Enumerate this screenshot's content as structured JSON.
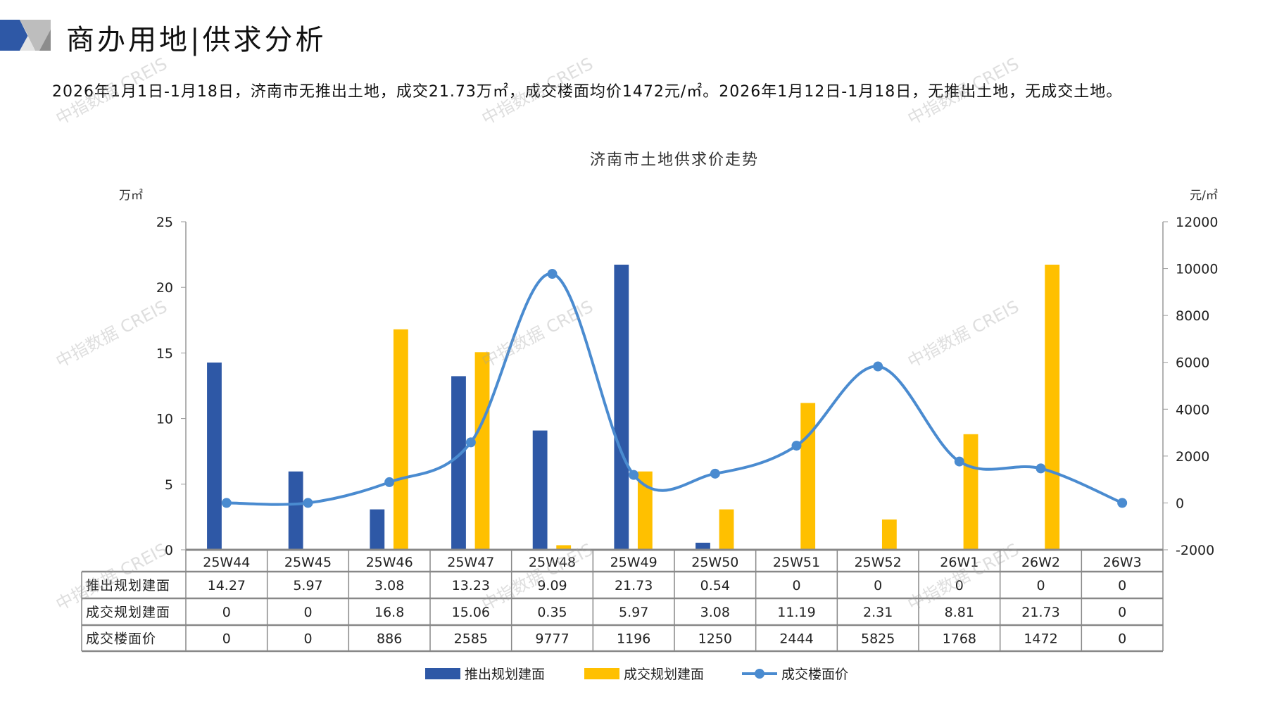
{
  "page": {
    "title": "商办用地|供求分析",
    "paragraph": "2026年1月1日-1月18日，济南市无推出土地，成交21.73万㎡，成交楼面均价1472元/㎡。2026年1月12日-1月18日，无推出土地，无成交土地。",
    "watermark": "中指数据 CREIS"
  },
  "colors": {
    "supply": "#2E58A6",
    "deal": "#FFC000",
    "price": "#4A8BD0"
  },
  "chart_data": {
    "type": "bar+line",
    "title": "济南市土地供求价走势",
    "ylabel_left": "万㎡",
    "ylabel_right": "元/㎡",
    "ylim_left": [
      0,
      25
    ],
    "ylim_right": [
      -2000,
      12000
    ],
    "yticks_left": [
      "0",
      "5",
      "10",
      "15",
      "20",
      "25"
    ],
    "yticks_right": [
      "-2000",
      "0",
      "2000",
      "4000",
      "6000",
      "8000",
      "10000",
      "12000"
    ],
    "categories": [
      "25W44",
      "25W45",
      "25W46",
      "25W47",
      "25W48",
      "25W49",
      "25W50",
      "25W51",
      "25W52",
      "26W1",
      "26W2",
      "26W3"
    ],
    "series": [
      {
        "name": "推出规划建面",
        "type": "bar",
        "axis": "left",
        "values": [
          14.27,
          5.97,
          3.08,
          13.23,
          9.09,
          21.73,
          0.54,
          0,
          0,
          0,
          0,
          0
        ],
        "labels": [
          "14.27",
          "5.97",
          "3.08",
          "13.23",
          "9.09",
          "21.73",
          "0.54",
          "0",
          "0",
          "0",
          "0",
          "0"
        ]
      },
      {
        "name": "成交规划建面",
        "type": "bar",
        "axis": "left",
        "values": [
          0,
          0,
          16.8,
          15.06,
          0.35,
          5.97,
          3.08,
          11.19,
          2.31,
          8.81,
          21.73,
          0
        ],
        "labels": [
          "0",
          "0",
          "16.8",
          "15.06",
          "0.35",
          "5.97",
          "3.08",
          "11.19",
          "2.31",
          "8.81",
          "21.73",
          "0"
        ]
      },
      {
        "name": "成交楼面价",
        "type": "line",
        "axis": "right",
        "values": [
          0,
          0,
          886,
          2585,
          9777,
          1196,
          1250,
          2444,
          5825,
          1768,
          1472,
          0
        ],
        "labels": [
          "0",
          "0",
          "886",
          "2585",
          "9777",
          "1196",
          "1250",
          "2444",
          "5825",
          "1768",
          "1472",
          "0"
        ]
      }
    ],
    "legend": "bottom",
    "data_table": true
  }
}
